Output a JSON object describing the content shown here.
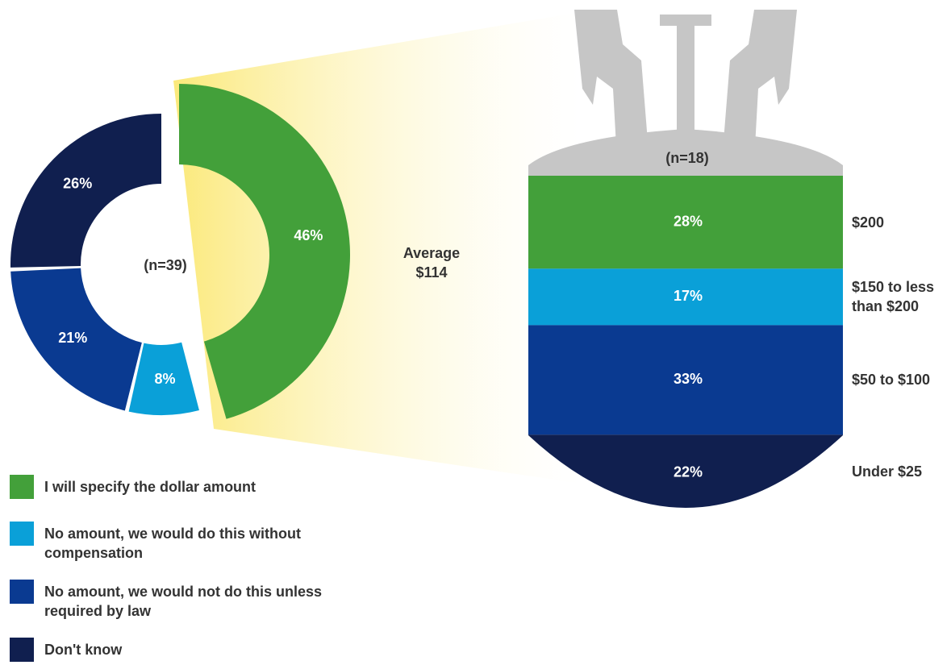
{
  "chart_data": [
    {
      "type": "donut",
      "center_label": "(n=39)",
      "categories": [
        "I will specify the dollar amount",
        "No amount, we would do this without compensation",
        "No amount, we would not do this unless required by law",
        "Don't know"
      ],
      "values": [
        46,
        8,
        21,
        26
      ],
      "value_labels": [
        "46%",
        "8%",
        "21%",
        "26%"
      ],
      "colors": [
        "#43a03a",
        "#0aa0d8",
        "#0a3a91",
        "#101f4f"
      ]
    },
    {
      "type": "stack",
      "header_label": "(n=18)",
      "annotation": "Average $114",
      "categories": [
        "$200",
        "$150 to less than $200",
        "$50 to $100",
        "Under $25"
      ],
      "values": [
        28,
        17,
        33,
        22
      ],
      "value_labels": [
        "28%",
        "17%",
        "33%",
        "22%"
      ],
      "colors": [
        "#43a03a",
        "#0aa0d8",
        "#0a3a91",
        "#101f4f"
      ]
    }
  ]
}
